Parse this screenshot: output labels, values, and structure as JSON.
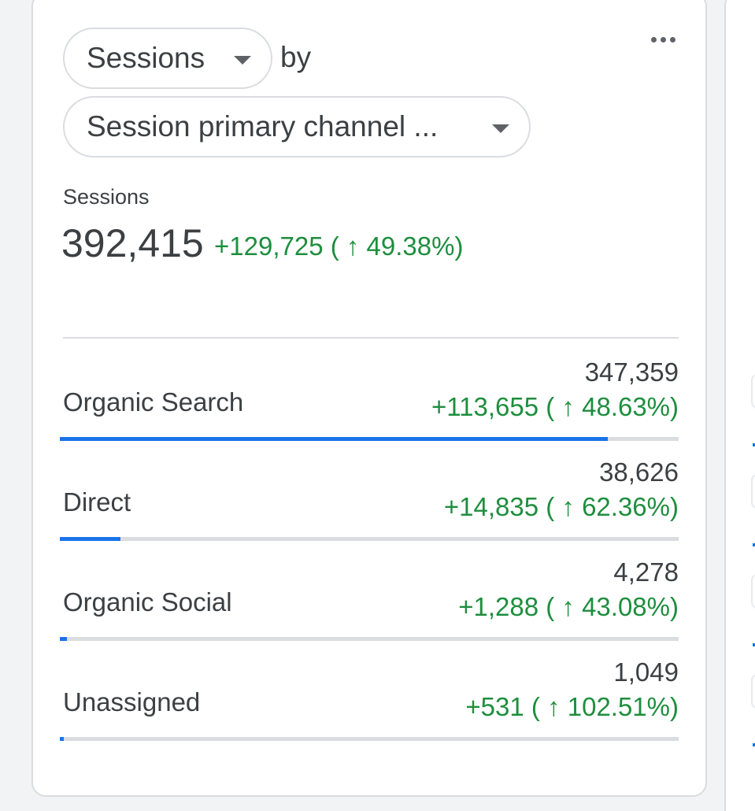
{
  "card": {
    "metric_selector": "Sessions",
    "by_label": "by",
    "dimension_selector": "Session primary channel ...",
    "metric_label": "Sessions",
    "metric_total": "392,415",
    "metric_change": "+129,725 ( ↑ 49.38%)"
  },
  "rows": [
    {
      "name": "Organic Search",
      "value": "347,359",
      "change": "+113,655 ( ↑ 48.63%)",
      "share": 0.885
    },
    {
      "name": "Direct",
      "value": "38,626",
      "change": "+14,835 ( ↑ 62.36%)",
      "share": 0.098
    },
    {
      "name": "Organic Social",
      "value": "4,278",
      "change": "+1,288 ( ↑ 43.08%)",
      "share": 0.011
    },
    {
      "name": "Unassigned",
      "value": "1,049",
      "change": "+531 ( ↑ 102.51%)",
      "share": 0.003
    }
  ],
  "colors": {
    "accent": "#1a73e8",
    "positive": "#1e8e3e",
    "track": "#dadce0"
  },
  "icons": {
    "more": "more-horiz-icon",
    "dropdown": "arrow-drop-down-icon"
  }
}
